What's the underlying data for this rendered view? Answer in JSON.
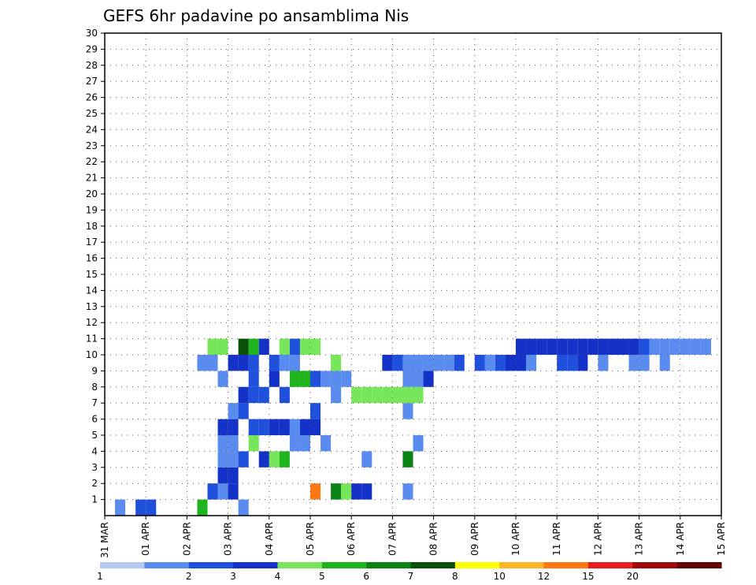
{
  "chart_data": {
    "type": "heatmap",
    "title": "GEFS 6hr padavine po ansamblima Nis",
    "x_tick_labels": [
      "31 MAR",
      "01 APR",
      "02 APR",
      "03 APR",
      "04 APR",
      "05 APR",
      "06 APR",
      "07 APR",
      "08 APR",
      "09 APR",
      "10 APR",
      "11 APR",
      "12 APR",
      "13 APR",
      "14 APR",
      "15 APR"
    ],
    "x_steps_per_day": 4,
    "y_tick_labels": [
      "1",
      "2",
      "3",
      "4",
      "5",
      "6",
      "7",
      "8",
      "9",
      "10",
      "11",
      "12",
      "13",
      "14",
      "15",
      "16",
      "17",
      "18",
      "19",
      "20",
      "21",
      "22",
      "23",
      "24",
      "25",
      "26",
      "27",
      "28",
      "29",
      "30"
    ],
    "ylim": [
      0,
      30
    ],
    "grid": true,
    "legend": {
      "placement": "bottom",
      "labels": [
        "1",
        "2",
        "3",
        "4",
        "5",
        "6",
        "7",
        "8",
        "10",
        "12",
        "15",
        "20"
      ],
      "colors": [
        "#b4c8f0",
        "#5a8cf0",
        "#1e50dc",
        "#1432c8",
        "#78e65a",
        "#1eb41e",
        "#0a8214",
        "#0a500a",
        "#ffff00",
        "#ffb428",
        "#ff7814",
        "#e61e1e",
        "#a00a0a",
        "#640000"
      ]
    },
    "cells": [
      [
        1,
        0,
        1
      ],
      [
        3,
        0,
        2
      ],
      [
        4,
        0,
        2
      ],
      [
        9,
        0,
        5
      ],
      [
        13,
        0,
        1
      ],
      [
        11,
        1,
        1
      ],
      [
        10,
        1,
        2
      ],
      [
        12,
        1,
        3
      ],
      [
        20,
        1,
        10
      ],
      [
        22,
        1,
        6
      ],
      [
        23,
        1,
        4
      ],
      [
        24,
        1,
        3
      ],
      [
        25,
        1,
        3
      ],
      [
        29,
        1,
        1
      ],
      [
        11,
        2,
        3
      ],
      [
        12,
        2,
        3
      ],
      [
        11,
        3,
        1
      ],
      [
        12,
        3,
        1
      ],
      [
        13,
        3,
        2
      ],
      [
        15,
        3,
        3
      ],
      [
        16,
        3,
        4
      ],
      [
        17,
        3,
        5
      ],
      [
        25,
        3,
        1
      ],
      [
        29,
        3,
        6
      ],
      [
        11,
        4,
        1
      ],
      [
        12,
        4,
        1
      ],
      [
        14,
        4,
        4
      ],
      [
        18,
        4,
        1
      ],
      [
        19,
        4,
        1
      ],
      [
        21,
        4,
        1
      ],
      [
        30,
        4,
        1
      ],
      [
        11,
        5,
        3
      ],
      [
        12,
        5,
        3
      ],
      [
        14,
        5,
        2
      ],
      [
        15,
        5,
        2
      ],
      [
        16,
        5,
        3
      ],
      [
        17,
        5,
        3
      ],
      [
        18,
        5,
        1
      ],
      [
        19,
        5,
        3
      ],
      [
        20,
        5,
        3
      ],
      [
        12,
        6,
        1
      ],
      [
        13,
        6,
        2
      ],
      [
        20,
        6,
        2
      ],
      [
        29,
        6,
        1
      ],
      [
        13,
        7,
        3
      ],
      [
        14,
        7,
        2
      ],
      [
        15,
        7,
        2
      ],
      [
        17,
        7,
        2
      ],
      [
        22,
        7,
        1
      ],
      [
        24,
        7,
        4
      ],
      [
        25,
        7,
        4
      ],
      [
        26,
        7,
        4
      ],
      [
        27,
        7,
        4
      ],
      [
        28,
        7,
        4
      ],
      [
        29,
        7,
        4
      ],
      [
        30,
        7,
        4
      ],
      [
        11,
        8,
        1
      ],
      [
        14,
        8,
        2
      ],
      [
        16,
        8,
        3
      ],
      [
        18,
        8,
        5
      ],
      [
        19,
        8,
        5
      ],
      [
        20,
        8,
        2
      ],
      [
        21,
        8,
        1
      ],
      [
        22,
        8,
        1
      ],
      [
        23,
        8,
        1
      ],
      [
        29,
        8,
        1
      ],
      [
        30,
        8,
        1
      ],
      [
        31,
        8,
        3
      ],
      [
        9,
        9,
        1
      ],
      [
        10,
        9,
        1
      ],
      [
        12,
        9,
        3
      ],
      [
        13,
        9,
        3
      ],
      [
        14,
        9,
        2
      ],
      [
        16,
        9,
        2
      ],
      [
        17,
        9,
        1
      ],
      [
        18,
        9,
        1
      ],
      [
        22,
        9,
        4
      ],
      [
        27,
        9,
        3
      ],
      [
        28,
        9,
        2
      ],
      [
        29,
        9,
        1
      ],
      [
        30,
        9,
        1
      ],
      [
        31,
        9,
        1
      ],
      [
        32,
        9,
        1
      ],
      [
        33,
        9,
        1
      ],
      [
        34,
        9,
        2
      ],
      [
        36,
        9,
        2
      ],
      [
        37,
        9,
        1
      ],
      [
        38,
        9,
        2
      ],
      [
        39,
        9,
        3
      ],
      [
        40,
        9,
        3
      ],
      [
        41,
        9,
        1
      ],
      [
        44,
        9,
        2
      ],
      [
        45,
        9,
        2
      ],
      [
        46,
        9,
        3
      ],
      [
        48,
        9,
        1
      ],
      [
        51,
        9,
        1
      ],
      [
        52,
        9,
        1
      ],
      [
        54,
        9,
        1
      ],
      [
        10,
        10,
        4
      ],
      [
        11,
        10,
        4
      ],
      [
        13,
        10,
        7
      ],
      [
        14,
        10,
        5
      ],
      [
        15,
        10,
        3
      ],
      [
        17,
        10,
        4
      ],
      [
        18,
        10,
        2
      ],
      [
        19,
        10,
        4
      ],
      [
        20,
        10,
        4
      ],
      [
        40,
        10,
        3
      ],
      [
        41,
        10,
        3
      ],
      [
        42,
        10,
        3
      ],
      [
        43,
        10,
        3
      ],
      [
        44,
        10,
        3
      ],
      [
        45,
        10,
        3
      ],
      [
        46,
        10,
        3
      ],
      [
        47,
        10,
        3
      ],
      [
        48,
        10,
        3
      ],
      [
        49,
        10,
        3
      ],
      [
        50,
        10,
        3
      ],
      [
        51,
        10,
        3
      ],
      [
        52,
        10,
        2
      ],
      [
        53,
        10,
        1
      ],
      [
        54,
        10,
        1
      ],
      [
        55,
        10,
        1
      ],
      [
        56,
        10,
        1
      ],
      [
        57,
        10,
        1
      ],
      [
        58,
        10,
        1
      ]
    ]
  }
}
